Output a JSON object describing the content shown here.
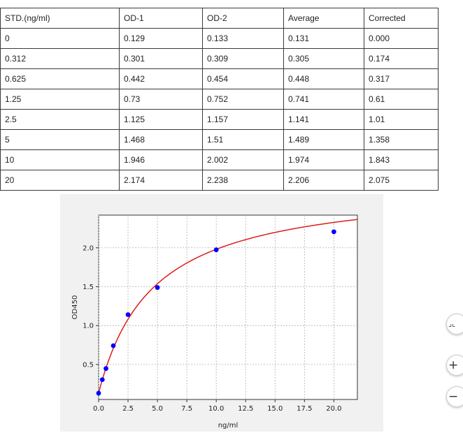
{
  "table": {
    "headers": [
      "STD.(ng/ml)",
      "OD-1",
      "OD-2",
      "Average",
      "Corrected"
    ],
    "rows": [
      [
        "0",
        "0.129",
        "0.133",
        "0.131",
        "0.000"
      ],
      [
        "0.312",
        "0.301",
        "0.309",
        "0.305",
        "0.174"
      ],
      [
        "0.625",
        "0.442",
        "0.454",
        "0.448",
        "0.317"
      ],
      [
        "1.25",
        "0.73",
        "0.752",
        "0.741",
        "0.61"
      ],
      [
        "2.5",
        "1.125",
        "1.157",
        "1.141",
        "1.01"
      ],
      [
        "5",
        "1.468",
        "1.51",
        "1.489",
        "1.358"
      ],
      [
        "10",
        "1.946",
        "2.002",
        "1.974",
        "1.843"
      ],
      [
        "20",
        "2.174",
        "2.238",
        "2.206",
        "2.075"
      ]
    ]
  },
  "chart_data": {
    "type": "scatter",
    "xlabel": "ng/ml",
    "ylabel": "OD450",
    "xlim": [
      0,
      22
    ],
    "ylim": [
      0.05,
      2.42
    ],
    "xticks": [
      "0.0",
      "2.5",
      "5.0",
      "7.5",
      "10.0",
      "12.5",
      "15.0",
      "17.5",
      "20.0"
    ],
    "yticks": [
      "0.5",
      "1.0",
      "1.5",
      "2.0"
    ],
    "grid": true,
    "series": [
      {
        "kind": "points",
        "color": "#0000ff",
        "x": [
          0,
          0.312,
          0.625,
          1.25,
          2.5,
          5,
          10,
          20
        ],
        "y": [
          0.131,
          0.305,
          0.448,
          0.741,
          1.141,
          1.489,
          1.974,
          2.206
        ]
      },
      {
        "kind": "fit-curve",
        "color": "#dd1c1c",
        "x": [
          0,
          0.25,
          0.5,
          0.75,
          1,
          1.5,
          2,
          2.5,
          3,
          4,
          5,
          6,
          7,
          8,
          9,
          10,
          11,
          12,
          13,
          14,
          15,
          16,
          17,
          18,
          19,
          20,
          21,
          22
        ],
        "y": [
          0.131,
          0.273,
          0.399,
          0.508,
          0.604,
          0.765,
          0.895,
          1.12,
          1.206,
          1.35,
          1.49,
          1.578,
          1.656,
          1.725,
          1.785,
          1.974,
          1.88,
          1.919,
          1.955,
          1.986,
          2.015,
          2.04,
          2.063,
          2.085,
          2.104,
          2.206,
          2.139,
          2.252
        ]
      }
    ]
  },
  "controls": {
    "fit_icon": "⌟⌞",
    "zoom_in": "+",
    "zoom_out": "−"
  }
}
